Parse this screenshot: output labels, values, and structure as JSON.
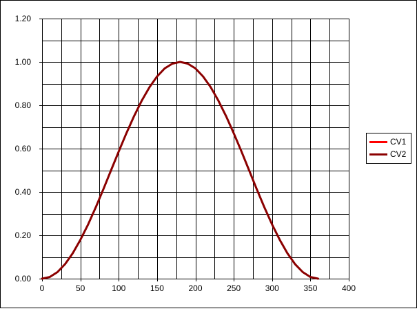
{
  "chart_data": {
    "type": "line",
    "title": "",
    "xlabel": "",
    "ylabel": "",
    "xlim": [
      0,
      400
    ],
    "ylim": [
      0,
      1.2
    ],
    "x_ticks": [
      "0",
      "50",
      "100",
      "150",
      "200",
      "250",
      "300",
      "350",
      "400"
    ],
    "y_ticks": [
      "0.00",
      "0.20",
      "0.40",
      "0.60",
      "0.80",
      "1.00",
      "1.20"
    ],
    "grid": true,
    "legend_position": "right",
    "series": [
      {
        "name": "CV1",
        "color": "#ff0000",
        "x": [
          0,
          10,
          20,
          30,
          40,
          50,
          60,
          70,
          80,
          90,
          100,
          110,
          120,
          130,
          140,
          150,
          160,
          170,
          180,
          190,
          200,
          210,
          220,
          230,
          240,
          250,
          260,
          270,
          280,
          290,
          300,
          310,
          320,
          330,
          340,
          350,
          360
        ],
        "y": [
          0.0,
          0.0076,
          0.0302,
          0.067,
          0.117,
          0.179,
          0.25,
          0.329,
          0.413,
          0.5,
          0.587,
          0.671,
          0.75,
          0.821,
          0.883,
          0.933,
          0.97,
          0.992,
          1.0,
          0.992,
          0.97,
          0.933,
          0.883,
          0.821,
          0.75,
          0.671,
          0.587,
          0.5,
          0.413,
          0.329,
          0.25,
          0.179,
          0.117,
          0.067,
          0.0302,
          0.0076,
          0.0
        ]
      },
      {
        "name": "CV2",
        "color": "#8b0000",
        "x": [
          0,
          10,
          20,
          30,
          40,
          50,
          60,
          70,
          80,
          90,
          100,
          110,
          120,
          130,
          140,
          150,
          160,
          170,
          180,
          190,
          200,
          210,
          220,
          230,
          240,
          250,
          260,
          270,
          280,
          290,
          300,
          310,
          320,
          330,
          340,
          350,
          360
        ],
        "y": [
          0.0,
          0.0076,
          0.0302,
          0.067,
          0.117,
          0.179,
          0.25,
          0.329,
          0.413,
          0.5,
          0.587,
          0.671,
          0.75,
          0.821,
          0.883,
          0.933,
          0.97,
          0.992,
          1.0,
          0.992,
          0.97,
          0.933,
          0.883,
          0.821,
          0.75,
          0.671,
          0.587,
          0.5,
          0.413,
          0.329,
          0.25,
          0.179,
          0.117,
          0.067,
          0.0302,
          0.0076,
          0.0
        ]
      }
    ]
  }
}
